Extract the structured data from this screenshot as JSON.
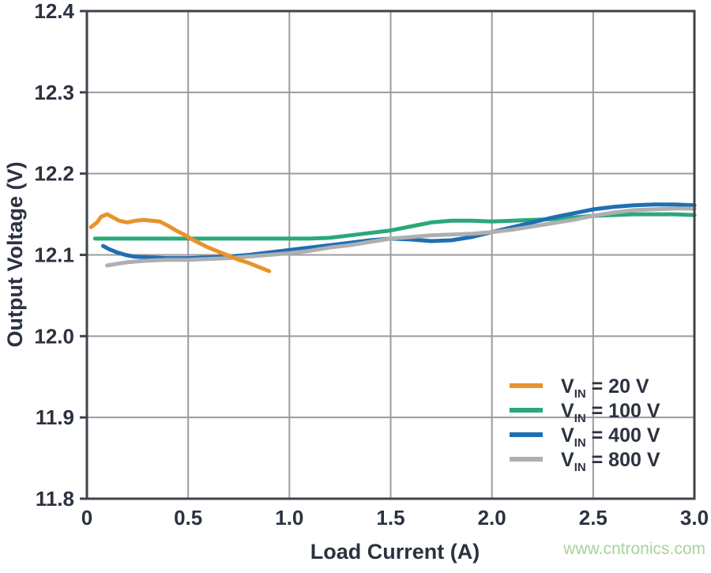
{
  "page": {
    "background": "#ffffff"
  },
  "watermark": {
    "text": "www.cntronics.com",
    "color": "#a8d29c"
  },
  "style_colors": {
    "axis_text": "#2b323f",
    "grid": "#9b9b9d",
    "frame": "#3e444c"
  },
  "chart_data": {
    "type": "line",
    "title": "",
    "xlabel": "Load Current (A)",
    "ylabel": "Output Voltage (V)",
    "xlim": [
      0,
      3.0
    ],
    "ylim": [
      11.8,
      12.4
    ],
    "grid": true,
    "legend_position": "lower right",
    "x_ticks": [
      {
        "v": 0,
        "label": "0"
      },
      {
        "v": 0.5,
        "label": "0.5"
      },
      {
        "v": 1.0,
        "label": "1.0"
      },
      {
        "v": 1.5,
        "label": "1.5"
      },
      {
        "v": 2.0,
        "label": "2.0"
      },
      {
        "v": 2.5,
        "label": "2.5"
      },
      {
        "v": 3.0,
        "label": "3.0"
      }
    ],
    "y_ticks": [
      {
        "v": 11.8,
        "label": "11.8"
      },
      {
        "v": 11.9,
        "label": "11.9"
      },
      {
        "v": 12.0,
        "label": "12.0"
      },
      {
        "v": 12.1,
        "label": "12.1"
      },
      {
        "v": 12.2,
        "label": "12.2"
      },
      {
        "v": 12.3,
        "label": "12.3"
      },
      {
        "v": 12.4,
        "label": "12.4"
      }
    ],
    "series": [
      {
        "name": "VIN = 20 V",
        "legend": {
          "var": "V",
          "sub": "IN",
          "eq": " = 20 V"
        },
        "color": "#e8932c",
        "points": [
          [
            0.02,
            12.134
          ],
          [
            0.05,
            12.14
          ],
          [
            0.07,
            12.147
          ],
          [
            0.1,
            12.15
          ],
          [
            0.13,
            12.146
          ],
          [
            0.16,
            12.142
          ],
          [
            0.2,
            12.14
          ],
          [
            0.24,
            12.142
          ],
          [
            0.28,
            12.143
          ],
          [
            0.32,
            12.142
          ],
          [
            0.36,
            12.141
          ],
          [
            0.4,
            12.136
          ],
          [
            0.44,
            12.13
          ],
          [
            0.48,
            12.125
          ],
          [
            0.52,
            12.119
          ],
          [
            0.56,
            12.114
          ],
          [
            0.6,
            12.109
          ],
          [
            0.65,
            12.104
          ],
          [
            0.7,
            12.099
          ],
          [
            0.75,
            12.094
          ],
          [
            0.8,
            12.09
          ],
          [
            0.85,
            12.085
          ],
          [
            0.9,
            12.08
          ]
        ]
      },
      {
        "name": "VIN = 100 V",
        "legend": {
          "var": "V",
          "sub": "IN",
          "eq": " = 100 V"
        },
        "color": "#2ba87b",
        "points": [
          [
            0.04,
            12.12
          ],
          [
            0.3,
            12.12
          ],
          [
            0.6,
            12.12
          ],
          [
            0.9,
            12.12
          ],
          [
            1.0,
            12.12
          ],
          [
            1.1,
            12.12
          ],
          [
            1.2,
            12.121
          ],
          [
            1.3,
            12.124
          ],
          [
            1.4,
            12.127
          ],
          [
            1.5,
            12.13
          ],
          [
            1.6,
            12.135
          ],
          [
            1.7,
            12.14
          ],
          [
            1.8,
            12.142
          ],
          [
            1.9,
            12.142
          ],
          [
            2.0,
            12.141
          ],
          [
            2.1,
            12.142
          ],
          [
            2.2,
            12.143
          ],
          [
            2.3,
            12.144
          ],
          [
            2.4,
            12.146
          ],
          [
            2.5,
            12.148
          ],
          [
            2.6,
            12.149
          ],
          [
            2.7,
            12.15
          ],
          [
            2.8,
            12.15
          ],
          [
            2.9,
            12.15
          ],
          [
            3.0,
            12.149
          ]
        ]
      },
      {
        "name": "VIN = 400 V",
        "legend": {
          "var": "V",
          "sub": "IN",
          "eq": " = 400 V"
        },
        "color": "#1f6fb2",
        "points": [
          [
            0.08,
            12.111
          ],
          [
            0.11,
            12.107
          ],
          [
            0.15,
            12.103
          ],
          [
            0.19,
            12.1
          ],
          [
            0.23,
            12.098
          ],
          [
            0.3,
            12.097
          ],
          [
            0.4,
            12.096
          ],
          [
            0.5,
            12.096
          ],
          [
            0.6,
            12.097
          ],
          [
            0.7,
            12.098
          ],
          [
            0.8,
            12.1
          ],
          [
            0.9,
            12.103
          ],
          [
            1.0,
            12.106
          ],
          [
            1.1,
            12.109
          ],
          [
            1.2,
            12.112
          ],
          [
            1.3,
            12.115
          ],
          [
            1.4,
            12.118
          ],
          [
            1.5,
            12.12
          ],
          [
            1.6,
            12.119
          ],
          [
            1.7,
            12.117
          ],
          [
            1.8,
            12.118
          ],
          [
            1.9,
            12.122
          ],
          [
            2.0,
            12.128
          ],
          [
            2.1,
            12.134
          ],
          [
            2.2,
            12.14
          ],
          [
            2.3,
            12.146
          ],
          [
            2.4,
            12.151
          ],
          [
            2.5,
            12.156
          ],
          [
            2.6,
            12.159
          ],
          [
            2.7,
            12.161
          ],
          [
            2.8,
            12.162
          ],
          [
            2.9,
            12.162
          ],
          [
            3.0,
            12.161
          ]
        ]
      },
      {
        "name": "VIN = 800 V",
        "legend": {
          "var": "V",
          "sub": "IN",
          "eq": " = 800 V"
        },
        "color": "#afafb1",
        "points": [
          [
            0.1,
            12.087
          ],
          [
            0.15,
            12.089
          ],
          [
            0.2,
            12.091
          ],
          [
            0.3,
            12.093
          ],
          [
            0.4,
            12.094
          ],
          [
            0.5,
            12.094
          ],
          [
            0.6,
            12.095
          ],
          [
            0.7,
            12.096
          ],
          [
            0.8,
            12.098
          ],
          [
            0.9,
            12.1
          ],
          [
            1.0,
            12.102
          ],
          [
            1.1,
            12.105
          ],
          [
            1.2,
            12.109
          ],
          [
            1.3,
            12.112
          ],
          [
            1.4,
            12.116
          ],
          [
            1.5,
            12.12
          ],
          [
            1.6,
            12.122
          ],
          [
            1.7,
            12.124
          ],
          [
            1.8,
            12.125
          ],
          [
            1.9,
            12.126
          ],
          [
            2.0,
            12.128
          ],
          [
            2.1,
            12.131
          ],
          [
            2.2,
            12.135
          ],
          [
            2.3,
            12.139
          ],
          [
            2.4,
            12.143
          ],
          [
            2.5,
            12.148
          ],
          [
            2.6,
            12.152
          ],
          [
            2.7,
            12.155
          ],
          [
            2.8,
            12.156
          ],
          [
            2.9,
            12.157
          ],
          [
            3.0,
            12.157
          ]
        ]
      }
    ]
  }
}
